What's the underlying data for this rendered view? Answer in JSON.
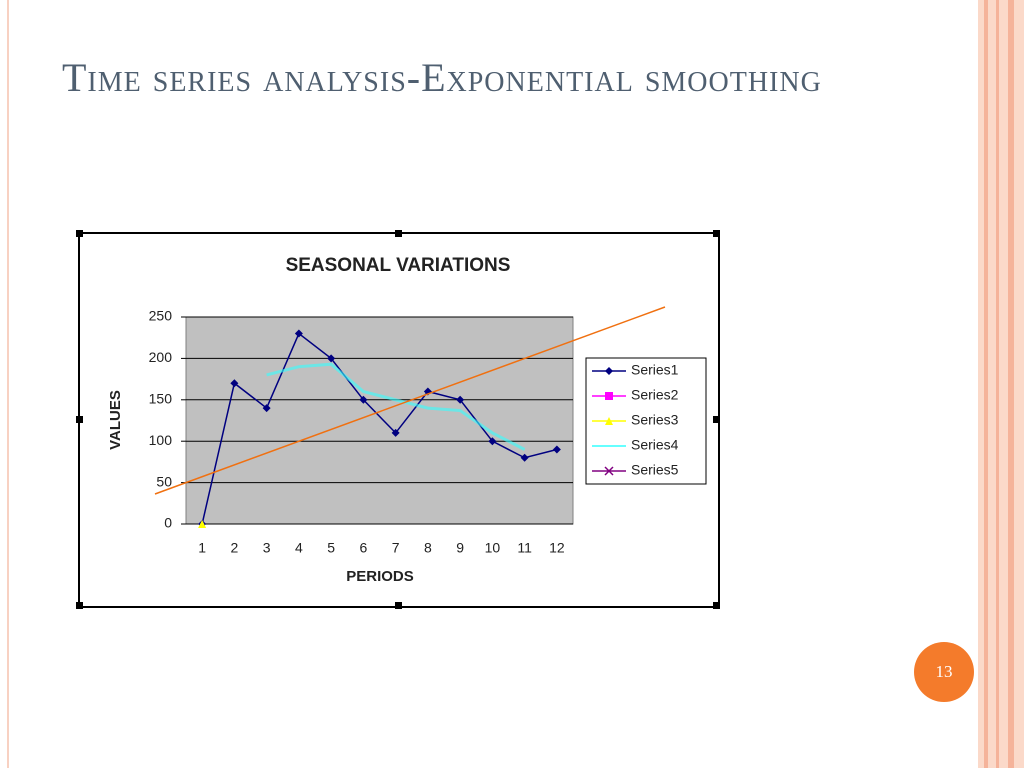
{
  "slide": {
    "title": "Time series analysis-Exponential smoothing",
    "page_number": "13"
  },
  "chart_data": {
    "type": "line",
    "title": "SEASONAL VARIATIONS",
    "x_label": "PERIODS",
    "y_label": "VALUES",
    "categories": [
      1,
      2,
      3,
      4,
      5,
      6,
      7,
      8,
      9,
      10,
      11,
      12
    ],
    "series": [
      {
        "name": "Series1",
        "color": "#000080",
        "marker": "diamond",
        "values": [
          0,
          170,
          140,
          230,
          200,
          150,
          110,
          160,
          150,
          100,
          80,
          90
        ]
      },
      {
        "name": "Series2",
        "color": "#ff00ff",
        "marker": "square",
        "values": [
          null,
          null,
          null,
          null,
          null,
          null,
          null,
          null,
          null,
          null,
          null,
          null
        ]
      },
      {
        "name": "Series3",
        "color": "#ffff00",
        "marker": "triangle",
        "values": [
          0,
          null,
          null,
          null,
          null,
          null,
          null,
          null,
          null,
          null,
          null,
          null
        ]
      },
      {
        "name": "Series4",
        "color": "#33ffff",
        "marker": "none",
        "values": [
          null,
          null,
          180,
          190,
          193,
          160,
          150,
          140,
          137,
          110,
          90,
          null
        ]
      },
      {
        "name": "Series5",
        "color": "#800080",
        "marker": "x",
        "values": [
          null,
          null,
          null,
          null,
          null,
          null,
          null,
          null,
          null,
          null,
          null,
          null
        ]
      }
    ],
    "ylim": [
      0,
      250
    ],
    "yticks": [
      0,
      50,
      100,
      150,
      200,
      250
    ],
    "grid": true,
    "legend": "right"
  }
}
